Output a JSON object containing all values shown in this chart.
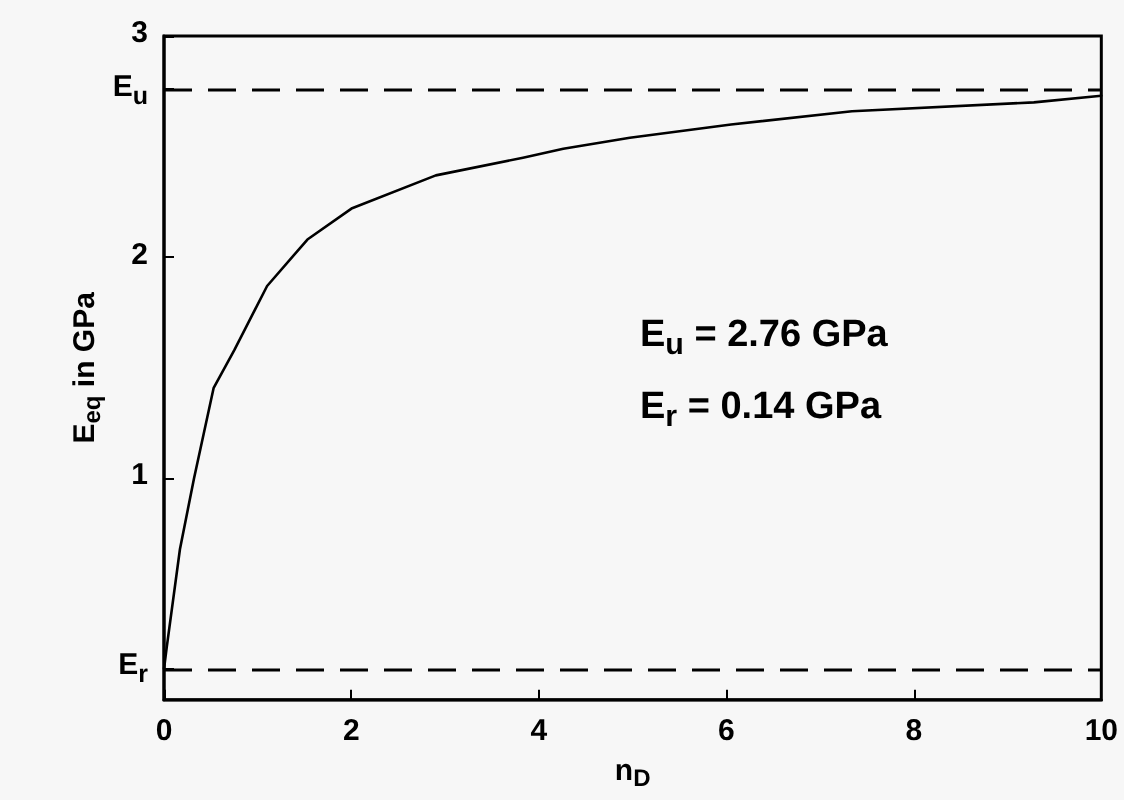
{
  "chart_data": {
    "type": "line",
    "xlabel": "n$_{D}$",
    "ylabel": "E$_{eq}$ in GPa",
    "annotations": [
      "E$_{u}$ = 2.76 GPa",
      "E$_{r}$ = 0.14 GPa"
    ],
    "series": [
      {
        "color": "#000000",
        "x": [
          0,
          0.03,
          0.17,
          0.32,
          0.53,
          0.75,
          1.1,
          1.53,
          2.0,
          2.9,
          3.83,
          4.26,
          4.97,
          6.05,
          7.34,
          9.28,
          10
        ],
        "values": [
          0.14,
          0.24,
          0.68,
          1.0,
          1.41,
          1.58,
          1.87,
          2.08,
          2.22,
          2.37,
          2.45,
          2.49,
          2.54,
          2.6,
          2.66,
          2.7,
          2.73
        ]
      }
    ],
    "xlim": [
      0,
      10
    ],
    "xticks": [
      0,
      2,
      4,
      6,
      8,
      10
    ],
    "ylim": [
      0,
      3
    ],
    "yticks": [
      {
        "value": 0.14,
        "label": "E$_{r}$"
      },
      1,
      2,
      {
        "value": 2.76,
        "label": "E$_{u}$"
      },
      3
    ],
    "ref_lines": [
      {
        "axis": "y",
        "value": 2.76,
        "label": null,
        "color": "#000000",
        "line_style": "dashed"
      },
      {
        "axis": "y",
        "value": 0.14,
        "label": null,
        "color": "#000000",
        "line_style": "dashed"
      }
    ],
    "grid": false,
    "marker": "none",
    "line_style": "solid"
  }
}
